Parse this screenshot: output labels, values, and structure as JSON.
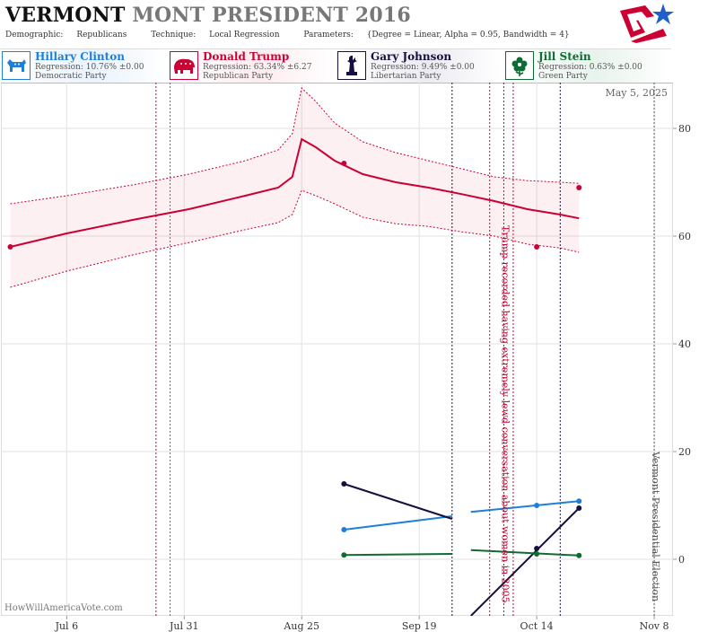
{
  "header": {
    "state": "VERMONT",
    "title_rest": "MONT PRESIDENT 2016",
    "demographic_label": "Demographic:",
    "demographic_value": "Republicans",
    "technique_label": "Technique:",
    "technique_value": "Local Regression",
    "parameters_label": "Parameters:",
    "parameters_value": "{Degree = Linear, Alpha = 0.95, Bandwidth = 4}"
  },
  "colors": {
    "clinton": "#1e7fdb",
    "trump": "#cc0033",
    "johnson": "#15103f",
    "stein": "#0d6b33"
  },
  "candidates": [
    {
      "name": "Hillary Clinton",
      "regression": "Regression: 10.76% ±0.00",
      "party": "Democratic Party",
      "color": "#1e7fdb",
      "icon": "donkey-icon",
      "bg": "#e9f3fd"
    },
    {
      "name": "Donald Trump",
      "regression": "Regression: 63.34% ±6.27",
      "party": "Republican Party",
      "color": "#cc0033",
      "icon": "elephant-icon",
      "bg": "#fdecef"
    },
    {
      "name": "Gary Johnson",
      "regression": "Regression: 9.49% ±0.00",
      "party": "Libertarian Party",
      "color": "#15103f",
      "icon": "statue-of-liberty-icon",
      "bg": "#ecebf2"
    },
    {
      "name": "Jill Stein",
      "regression": "Regression: 0.63% ±0.00",
      "party": "Green Party",
      "color": "#0d6b33",
      "icon": "flower-icon",
      "bg": "#e8f3ec"
    }
  ],
  "chart_data": {
    "type": "line",
    "date_label": "May 5, 2025",
    "watermark": "HowWillAmericaVote.com",
    "x_ticks": [
      "Jul 6",
      "Jul 31",
      "Aug 25",
      "Sep 19",
      "Oct 14",
      "Nov 8"
    ],
    "x_tick_dates": [
      "2016-07-06",
      "2016-07-31",
      "2016-08-25",
      "2016-09-19",
      "2016-10-14",
      "2016-11-08"
    ],
    "y_ticks": [
      0,
      20,
      40,
      60,
      80
    ],
    "x_range": [
      "2016-06-22",
      "2016-11-12"
    ],
    "ylim": [
      -10.5,
      88.5
    ],
    "grid": true,
    "events": [
      {
        "date": "2016-07-25",
        "color": "#cc0033"
      },
      {
        "date": "2016-07-28",
        "color": "#1e7fdb"
      },
      {
        "date": "2016-09-26",
        "color": "#15103f"
      },
      {
        "date": "2016-10-04",
        "color": "#cc0033"
      },
      {
        "date": "2016-10-07",
        "color": "#cc0033"
      },
      {
        "date": "2016-10-09",
        "color": "#cc0033"
      },
      {
        "date": "2016-10-19",
        "color": "#15103f"
      },
      {
        "date": "2016-11-08",
        "color": "#555555"
      }
    ],
    "annotations": [
      {
        "date": "2016-10-07",
        "y": 62,
        "text": "Trump recorded having extremely lewd conversation about women in 2005",
        "color": "#cc0033"
      },
      {
        "date": "2016-11-08",
        "y": 20,
        "text": "Vermont Presidential Election",
        "color": "#555555"
      }
    ],
    "series": [
      {
        "name": "Donald Trump",
        "color": "#cc0033",
        "x": [
          "2016-06-24",
          "2016-07-06",
          "2016-07-20",
          "2016-08-01",
          "2016-08-13",
          "2016-08-20",
          "2016-08-23",
          "2016-08-25",
          "2016-08-28",
          "2016-09-01",
          "2016-09-07",
          "2016-09-14",
          "2016-09-21",
          "2016-09-28",
          "2016-10-05",
          "2016-10-12",
          "2016-10-19",
          "2016-10-23"
        ],
        "y": [
          58.0,
          60.5,
          63.0,
          65.0,
          67.5,
          69.0,
          71.0,
          78.0,
          76.5,
          74.0,
          71.5,
          70.0,
          69.0,
          67.8,
          66.5,
          65.0,
          64.0,
          63.3
        ],
        "upper": [
          66.0,
          67.5,
          69.5,
          71.5,
          74.0,
          76.0,
          79.0,
          87.5,
          85.0,
          81.0,
          77.5,
          75.5,
          74.0,
          72.5,
          71.0,
          70.3,
          70.0,
          69.8
        ],
        "lower": [
          50.5,
          53.5,
          56.5,
          58.8,
          61.2,
          62.5,
          64.0,
          68.5,
          67.5,
          66.0,
          63.5,
          62.3,
          61.8,
          60.8,
          60.0,
          58.5,
          57.8,
          57.0
        ],
        "points": [
          {
            "x": "2016-06-24",
            "y": 58.0
          },
          {
            "x": "2016-09-03",
            "y": 73.5
          },
          {
            "x": "2016-10-14",
            "y": 58.0
          },
          {
            "x": "2016-10-23",
            "y": 69.0
          }
        ]
      },
      {
        "name": "Hillary Clinton",
        "color": "#1e7fdb",
        "segments": [
          {
            "x": [
              "2016-09-03",
              "2016-09-26"
            ],
            "y": [
              5.5,
              8.0
            ]
          },
          {
            "x": [
              "2016-09-30",
              "2016-10-23"
            ],
            "y": [
              8.8,
              10.8
            ]
          }
        ],
        "points": [
          {
            "x": "2016-09-03",
            "y": 5.5
          },
          {
            "x": "2016-10-14",
            "y": 10.0
          },
          {
            "x": "2016-10-23",
            "y": 10.8
          }
        ]
      },
      {
        "name": "Gary Johnson",
        "color": "#15103f",
        "segments": [
          {
            "x": [
              "2016-09-03",
              "2016-09-26"
            ],
            "y": [
              14.0,
              7.5
            ]
          },
          {
            "x": [
              "2016-09-30",
              "2016-10-23"
            ],
            "y": [
              -10.5,
              9.5
            ]
          }
        ],
        "points": [
          {
            "x": "2016-09-03",
            "y": 14.0
          },
          {
            "x": "2016-10-14",
            "y": 2.0
          },
          {
            "x": "2016-10-23",
            "y": 9.5
          }
        ]
      },
      {
        "name": "Jill Stein",
        "color": "#0d6b33",
        "segments": [
          {
            "x": [
              "2016-09-03",
              "2016-09-26"
            ],
            "y": [
              0.8,
              1.0
            ]
          },
          {
            "x": [
              "2016-09-30",
              "2016-10-23"
            ],
            "y": [
              1.7,
              0.7
            ]
          }
        ],
        "points": [
          {
            "x": "2016-09-03",
            "y": 0.8
          },
          {
            "x": "2016-10-14",
            "y": 1.0
          },
          {
            "x": "2016-10-23",
            "y": 0.7
          }
        ]
      }
    ]
  }
}
